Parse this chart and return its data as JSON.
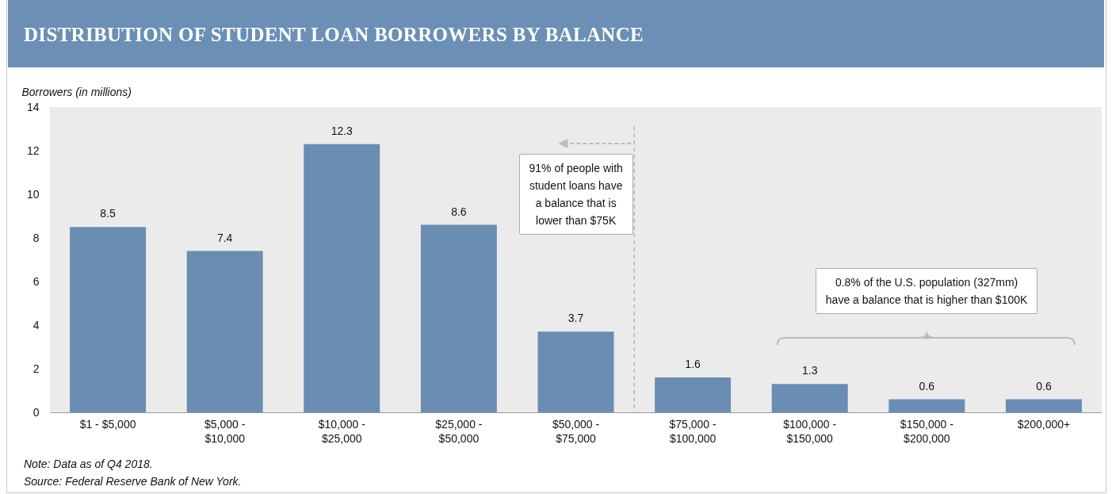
{
  "chart_data": {
    "type": "bar",
    "title": "DISTRIBUTION OF STUDENT LOAN BORROWERS BY BALANCE",
    "ylabel": "Borrowers (in millions)",
    "categories": [
      "$1 - $5,000",
      "$5,000 - $10,000",
      "$10,000 - $25,000",
      "$25,000 - $50,000",
      "$50,000 - $75,000",
      "$75,000 - $100,000",
      "$100,000 - $150,000",
      "$150,000 - $200,000",
      "$200,000+"
    ],
    "values": [
      8.5,
      7.4,
      12.3,
      8.6,
      3.7,
      1.6,
      1.3,
      0.6,
      0.6
    ],
    "color": "#6a8db3",
    "ylim": [
      0,
      14
    ],
    "yticks": [
      0,
      2,
      4,
      6,
      8,
      10,
      12,
      14
    ],
    "data_labels": true,
    "annotations": [
      "91% of people with\nstudent loans have\na balance that is\nlower than $75K",
      "0.8% of the U.S. population (327mm)\nhave a balance that is higher than $100K",
      "Note: Data as of Q4 2018.",
      "Source: Federal Reserve Bank of New York."
    ]
  }
}
